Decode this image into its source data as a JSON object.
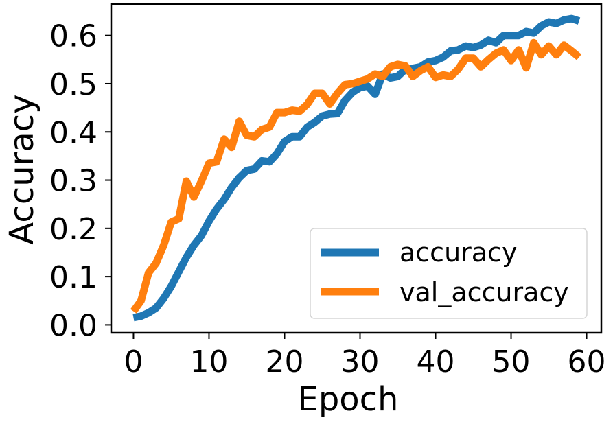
{
  "chart_data": {
    "type": "line",
    "title": "",
    "xlabel": "Epoch",
    "ylabel": "Accuracy",
    "xlim": [
      -2.95,
      61.95
    ],
    "ylim": [
      -0.0165,
      0.665
    ],
    "xticks": [
      0,
      10,
      20,
      30,
      40,
      50,
      60
    ],
    "yticks": [
      0.0,
      0.1,
      0.2,
      0.3,
      0.4,
      0.5,
      0.6
    ],
    "xtick_labels": [
      "0",
      "10",
      "20",
      "30",
      "40",
      "50",
      "60"
    ],
    "ytick_labels": [
      "0.0",
      "0.1",
      "0.2",
      "0.3",
      "0.4",
      "0.5",
      "0.6"
    ],
    "grid": false,
    "legend_position": "lower-right",
    "x": [
      0,
      1,
      2,
      3,
      4,
      5,
      6,
      7,
      8,
      9,
      10,
      11,
      12,
      13,
      14,
      15,
      16,
      17,
      18,
      19,
      20,
      21,
      22,
      23,
      24,
      25,
      26,
      27,
      28,
      29,
      30,
      31,
      32,
      33,
      34,
      35,
      36,
      37,
      38,
      39,
      40,
      41,
      42,
      43,
      44,
      45,
      46,
      47,
      48,
      49,
      50,
      51,
      52,
      53,
      54,
      55,
      56,
      57,
      58,
      59
    ],
    "series": [
      {
        "name": "accuracy",
        "color": "#1f77b4",
        "values": [
          0.015,
          0.018,
          0.025,
          0.035,
          0.055,
          0.08,
          0.11,
          0.14,
          0.165,
          0.185,
          0.215,
          0.24,
          0.26,
          0.285,
          0.305,
          0.32,
          0.323,
          0.34,
          0.338,
          0.355,
          0.38,
          0.39,
          0.39,
          0.41,
          0.42,
          0.433,
          0.437,
          0.438,
          0.465,
          0.482,
          0.492,
          0.495,
          0.478,
          0.52,
          0.512,
          0.515,
          0.53,
          0.532,
          0.535,
          0.545,
          0.548,
          0.555,
          0.568,
          0.57,
          0.578,
          0.575,
          0.58,
          0.59,
          0.585,
          0.6,
          0.6,
          0.6,
          0.608,
          0.605,
          0.62,
          0.628,
          0.625,
          0.632,
          0.635,
          0.63
        ]
      },
      {
        "name": "val_accuracy",
        "color": "#ff7f0e",
        "values": [
          0.028,
          0.05,
          0.108,
          0.128,
          0.165,
          0.213,
          0.22,
          0.298,
          0.265,
          0.298,
          0.335,
          0.338,
          0.385,
          0.368,
          0.422,
          0.393,
          0.39,
          0.405,
          0.41,
          0.44,
          0.44,
          0.445,
          0.443,
          0.457,
          0.48,
          0.48,
          0.458,
          0.48,
          0.498,
          0.5,
          0.505,
          0.51,
          0.52,
          0.515,
          0.535,
          0.54,
          0.537,
          0.515,
          0.527,
          0.535,
          0.513,
          0.518,
          0.515,
          0.53,
          0.553,
          0.553,
          0.535,
          0.55,
          0.563,
          0.57,
          0.548,
          0.57,
          0.533,
          0.585,
          0.56,
          0.578,
          0.56,
          0.58,
          0.568,
          0.555
        ]
      }
    ]
  }
}
